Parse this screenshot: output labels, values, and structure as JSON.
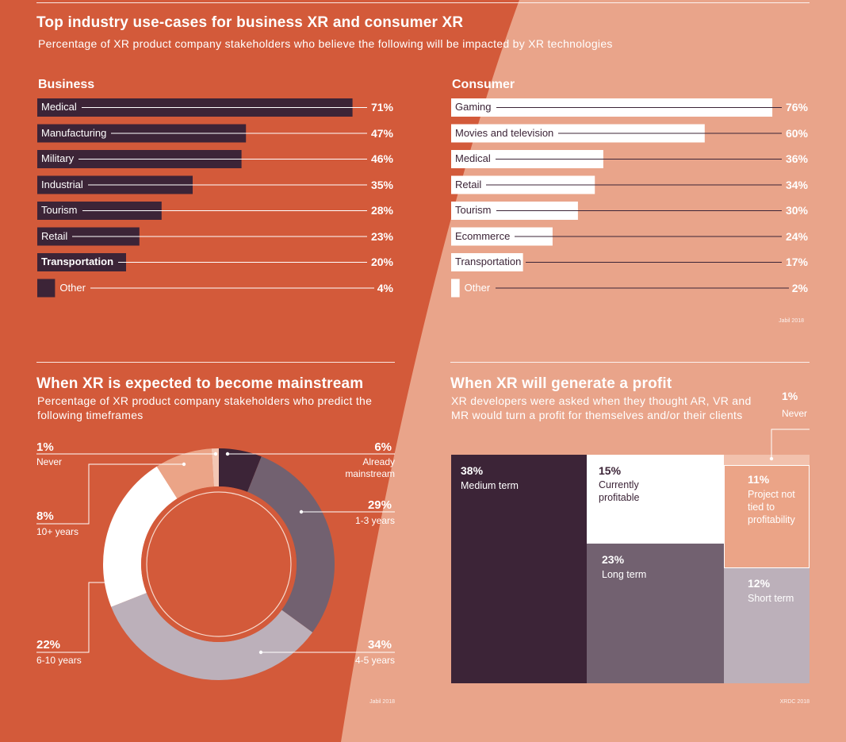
{
  "colors": {
    "bg_left": "#d35a3a",
    "bg_right": "#e9a48a",
    "dark": "#3c2437",
    "mid": "#726170",
    "light_grey": "#bcb0ba",
    "white": "#ffffff",
    "salmon": "#eba487"
  },
  "header": {
    "title": "Top industry use-cases for business XR and consumer XR",
    "subtitle": "Percentage of XR product company stakeholders who believe the following will be impacted by XR technologies"
  },
  "mainstream": {
    "title": "When XR is expected to become mainstream",
    "subtitle_line1": "Percentage of XR product company stakeholders who predict the",
    "subtitle_line2": "following timeframes",
    "source": "Jabil 2018"
  },
  "profit": {
    "title": "When XR will generate a profit",
    "subtitle_line1": "XR developers were asked when they thought AR, VR and",
    "subtitle_line2": "MR would turn a profit for themselves and/or their clients",
    "source": "XRDC 2018"
  },
  "chart_data": [
    {
      "type": "bar",
      "title": "Business",
      "categories": [
        "Medical",
        "Manufacturing",
        "Military",
        "Industrial",
        "Tourism",
        "Retail",
        "Transportation",
        "Other"
      ],
      "values": [
        71,
        47,
        46,
        35,
        28,
        23,
        20,
        4
      ],
      "labels": [
        "71%",
        "47%",
        "46%",
        "35%",
        "28%",
        "23%",
        "20%",
        "4%"
      ]
    },
    {
      "type": "bar",
      "title": "Consumer",
      "categories": [
        "Gaming",
        "Movies and television",
        "Medical",
        "Retail",
        "Tourism",
        "Ecommerce",
        "Transportation",
        "Other"
      ],
      "values": [
        76,
        60,
        36,
        34,
        30,
        24,
        17,
        2
      ],
      "labels": [
        "76%",
        "60%",
        "36%",
        "34%",
        "30%",
        "24%",
        "17%",
        "2%"
      ],
      "source": "Jabil 2018"
    },
    {
      "type": "pie",
      "categories": [
        "Already mainstream",
        "1-3 years",
        "4-5 years",
        "6-10 years",
        "10+ years",
        "Never"
      ],
      "values": [
        6,
        29,
        34,
        22,
        8,
        1
      ],
      "labels": [
        "6%",
        "29%",
        "34%",
        "22%",
        "8%",
        "1%"
      ]
    },
    {
      "type": "heatmap",
      "categories": [
        "Medium term",
        "Currently profitable",
        "Long term",
        "Project not tied to profitability",
        "Short term",
        "Never"
      ],
      "values": [
        38,
        15,
        23,
        11,
        12,
        1
      ],
      "labels": [
        "38%",
        "15%",
        "23%",
        "11%",
        "12%",
        "1%"
      ]
    }
  ]
}
